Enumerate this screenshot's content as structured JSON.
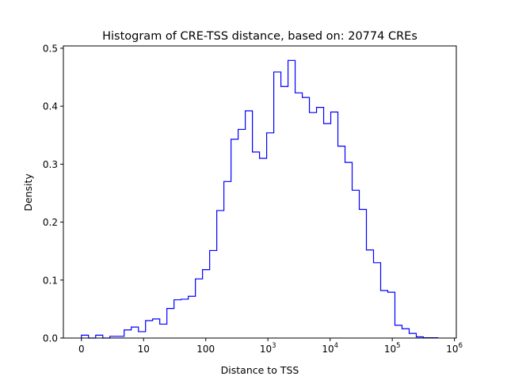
{
  "chart_data": {
    "type": "bar",
    "histtype": "step",
    "title": "Histogram of CRE-TSS distance, based on: 20774 CREs",
    "xlabel": "Distance to TSS",
    "ylabel": "Density",
    "x_scale": "log10(x+1)",
    "xlim_log": [
      -0.29,
      6.03
    ],
    "ylim": [
      0,
      0.504
    ],
    "grid": false,
    "color": "#0000ff",
    "bin_start_log": 0,
    "bin_width_log": 0.1146,
    "values": [
      0.005,
      0,
      0.005,
      0,
      0.003,
      0.003,
      0.014,
      0.019,
      0.011,
      0.03,
      0.033,
      0.024,
      0.051,
      0.066,
      0.067,
      0.072,
      0.102,
      0.118,
      0.151,
      0.22,
      0.27,
      0.343,
      0.36,
      0.392,
      0.321,
      0.31,
      0.354,
      0.459,
      0.434,
      0.479,
      0.423,
      0.415,
      0.389,
      0.398,
      0.37,
      0.39,
      0.331,
      0.303,
      0.255,
      0.222,
      0.152,
      0.13,
      0.082,
      0.079,
      0.022,
      0.016,
      0.008,
      0.002,
      0.0005,
      0.0005
    ],
    "x_ticks": [
      {
        "pos": 0,
        "base": "0",
        "exp": ""
      },
      {
        "pos": 1,
        "base": "10",
        "exp": ""
      },
      {
        "pos": 2,
        "base": "100",
        "exp": ""
      },
      {
        "pos": 3,
        "base": "10",
        "exp": "3"
      },
      {
        "pos": 4,
        "base": "10",
        "exp": "4"
      },
      {
        "pos": 5,
        "base": "10",
        "exp": "5"
      },
      {
        "pos": 6,
        "base": "10",
        "exp": "6"
      }
    ],
    "y_ticks": [
      {
        "value": 0,
        "label": "0.0"
      },
      {
        "value": 0.1,
        "label": "0.1"
      },
      {
        "value": 0.2,
        "label": "0.2"
      },
      {
        "value": 0.3,
        "label": "0.3"
      },
      {
        "value": 0.4,
        "label": "0.4"
      },
      {
        "value": 0.5,
        "label": "0.5"
      }
    ]
  }
}
